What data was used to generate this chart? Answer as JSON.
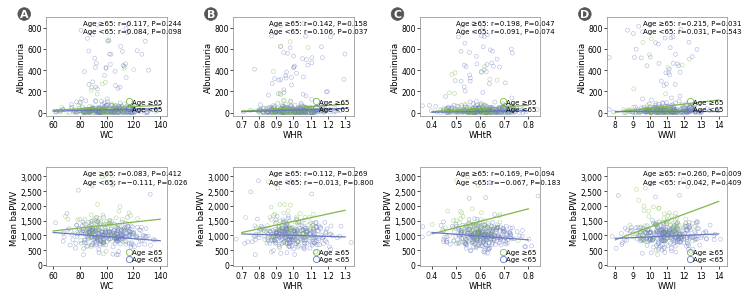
{
  "panels": [
    {
      "col": 0,
      "row": 0,
      "xlabel": "WC",
      "ylabel": "Albuminuria",
      "xlim": [
        55,
        145
      ],
      "ylim": [
        -30,
        900
      ],
      "xticks": [
        60,
        80,
        100,
        120,
        140
      ],
      "yticks": [
        0,
        200,
        400,
        600,
        800
      ],
      "annotation": "Age ≥65: r=0.117, P=0.244\nAge <65: r=0.084, P=0.098",
      "label": "A",
      "trend_ge65": [
        60,
        140,
        25,
        70
      ],
      "trend_lt65": [
        60,
        140,
        15,
        40
      ],
      "n_ge65": 70,
      "n_lt65": 280
    },
    {
      "col": 1,
      "row": 0,
      "xlabel": "WHR",
      "ylabel": "Albuminuria",
      "xlim": [
        0.65,
        1.35
      ],
      "ylim": [
        -30,
        900
      ],
      "xticks": [
        0.7,
        0.8,
        0.9,
        1.0,
        1.1,
        1.2,
        1.3
      ],
      "yticks": [
        0,
        200,
        400,
        600,
        800
      ],
      "annotation": "Age ≥65: r=0.142, P=0.158\nAge <65: r=0.106, P=0.037",
      "label": "B",
      "trend_ge65": [
        0.7,
        1.3,
        15,
        80
      ],
      "trend_lt65": [
        0.7,
        1.3,
        10,
        40
      ],
      "n_ge65": 70,
      "n_lt65": 280
    },
    {
      "col": 2,
      "row": 0,
      "xlabel": "WHtR",
      "ylabel": "Albuminuria",
      "xlim": [
        0.35,
        0.85
      ],
      "ylim": [
        -30,
        900
      ],
      "xticks": [
        0.4,
        0.5,
        0.6,
        0.7,
        0.8
      ],
      "yticks": [
        0,
        200,
        400,
        600,
        800
      ],
      "annotation": "Age ≥65: r=0.198, P=0.047\nAge <65: r=0.091, P=0.074",
      "label": "C",
      "trend_ge65": [
        0.4,
        0.8,
        10,
        70
      ],
      "trend_lt65": [
        0.4,
        0.8,
        5,
        20
      ],
      "n_ge65": 70,
      "n_lt65": 280
    },
    {
      "col": 3,
      "row": 0,
      "xlabel": "WWI",
      "ylabel": "Albuminuria",
      "xlim": [
        7.5,
        14.5
      ],
      "ylim": [
        -30,
        900
      ],
      "xticks": [
        8,
        9,
        10,
        11,
        12,
        13,
        14
      ],
      "yticks": [
        0,
        200,
        400,
        600,
        800
      ],
      "annotation": "Age ≥65: r=0.215, P=0.031\nAge <65: r=0.031, P=0.543",
      "label": "D",
      "trend_ge65": [
        8,
        14,
        5,
        120
      ],
      "trend_lt65": [
        8,
        14,
        18,
        18
      ],
      "n_ge65": 70,
      "n_lt65": 280
    },
    {
      "col": 0,
      "row": 1,
      "xlabel": "WC",
      "ylabel": "Mean baPWV",
      "xlim": [
        55,
        145
      ],
      "ylim": [
        -50,
        3300
      ],
      "xticks": [
        60,
        80,
        100,
        120,
        140
      ],
      "yticks": [
        0,
        500,
        1000,
        1500,
        2000,
        2500,
        3000
      ],
      "annotation": "Age ≥65: r=0.083, P=0.412\nAge <65: r=−0.111, P=0.026",
      "label": "",
      "trend_ge65": [
        60,
        140,
        1150,
        1550
      ],
      "trend_lt65": [
        60,
        140,
        1100,
        820
      ],
      "n_ge65": 70,
      "n_lt65": 280
    },
    {
      "col": 1,
      "row": 1,
      "xlabel": "WHR",
      "ylabel": "Mean baPWV",
      "xlim": [
        0.65,
        1.35
      ],
      "ylim": [
        -50,
        3300
      ],
      "xticks": [
        0.7,
        0.8,
        0.9,
        1.0,
        1.1,
        1.2,
        1.3
      ],
      "yticks": [
        0,
        500,
        1000,
        1500,
        2000,
        2500,
        3000
      ],
      "annotation": "Age ≥65: r=0.112, P=0.269\nAge <65: r=−0.013, P=0.800",
      "label": "",
      "trend_ge65": [
        0.7,
        1.3,
        1100,
        1850
      ],
      "trend_lt65": [
        0.7,
        1.3,
        1050,
        950
      ],
      "n_ge65": 70,
      "n_lt65": 280
    },
    {
      "col": 2,
      "row": 1,
      "xlabel": "WHtR",
      "ylabel": "Mean baPWV",
      "xlim": [
        0.35,
        0.85
      ],
      "ylim": [
        -50,
        3300
      ],
      "xticks": [
        0.4,
        0.5,
        0.6,
        0.7,
        0.8
      ],
      "yticks": [
        0,
        500,
        1000,
        1500,
        2000,
        2500,
        3000
      ],
      "annotation": "Age ≥65: r=0.169, P=0.094\nAge <65: r=−0.067, P=0.183",
      "label": "",
      "trend_ge65": [
        0.4,
        0.8,
        1050,
        1900
      ],
      "trend_lt65": [
        0.4,
        0.8,
        1100,
        850
      ],
      "n_ge65": 70,
      "n_lt65": 280
    },
    {
      "col": 3,
      "row": 1,
      "xlabel": "WWI",
      "ylabel": "Mean baPWV",
      "xlim": [
        7.5,
        14.5
      ],
      "ylim": [
        -50,
        3300
      ],
      "xticks": [
        8,
        9,
        10,
        11,
        12,
        13,
        14
      ],
      "yticks": [
        0,
        500,
        1000,
        1500,
        2000,
        2500,
        3000
      ],
      "annotation": "Age ≥65: r=0.260, P=0.009\nAge <65: r=0.042, P=0.409",
      "label": "",
      "trend_ge65": [
        8,
        14,
        850,
        2150
      ],
      "trend_lt65": [
        8,
        14,
        900,
        1050
      ],
      "n_ge65": 70,
      "n_lt65": 280
    }
  ],
  "color_ge65": "#7cb94a",
  "color_lt65": "#6879c0",
  "marker_size": 8,
  "alpha": 0.55,
  "font_size_annotation": 5.0,
  "font_size_label": 7,
  "font_size_axis": 6.0,
  "font_size_tick": 5.5,
  "legend_marker_size": 4.5,
  "legend_fontsize": 5.0
}
